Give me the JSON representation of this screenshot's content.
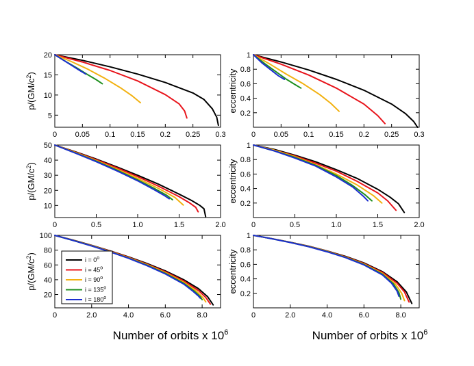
{
  "colors": {
    "i0": "#000000",
    "i45": "#e8141b",
    "i90": "#f2b110",
    "i135": "#1e8f1e",
    "i180": "#1c2fcf"
  },
  "figure": {
    "xlabel_prefix": "Number of orbits x 10",
    "xlabel_exp": "6"
  },
  "legend": {
    "entries": [
      {
        "prefix": "i = ",
        "value": "0",
        "sup": "o",
        "color": "#000000"
      },
      {
        "prefix": "i = ",
        "value": "45",
        "sup": "o",
        "color": "#e8141b"
      },
      {
        "prefix": "i = ",
        "value": "90",
        "sup": "o",
        "color": "#f2b110"
      },
      {
        "prefix": "i = ",
        "value": "135",
        "sup": "o",
        "color": "#1e8f1e"
      },
      {
        "prefix": "i = ",
        "value": "180",
        "sup": "o",
        "color": "#1c2fcf"
      }
    ]
  },
  "chart_data": [
    {
      "id": "top-left",
      "type": "line",
      "ylabel": "p/(GM/c2)",
      "xlim": [
        0,
        0.3
      ],
      "ylim": [
        2,
        20
      ],
      "xticks": [
        "0",
        "0.05",
        "0.1",
        "0.15",
        "0.2",
        "0.25",
        "0.3"
      ],
      "xtick_values": [
        0,
        0.05,
        0.1,
        0.15,
        0.2,
        0.25,
        0.3
      ],
      "yticks": [
        "5",
        "10",
        "15",
        "20"
      ],
      "ytick_values": [
        5,
        10,
        15,
        20
      ],
      "series": [
        {
          "name": "i = 0",
          "color": "#000000",
          "x": [
            0,
            0.05,
            0.1,
            0.15,
            0.2,
            0.25,
            0.27,
            0.285,
            0.293,
            0.296
          ],
          "y": [
            20,
            18.6,
            17.0,
            15.2,
            13.1,
            10.5,
            8.9,
            6.6,
            4.5,
            2.5
          ]
        },
        {
          "name": "i = 45",
          "color": "#e8141b",
          "x": [
            0,
            0.05,
            0.1,
            0.15,
            0.2,
            0.225,
            0.235,
            0.239
          ],
          "y": [
            20,
            18.2,
            16.1,
            13.5,
            10.1,
            7.8,
            6.0,
            4.3
          ]
        },
        {
          "name": "i = 90",
          "color": "#f2b110",
          "x": [
            0,
            0.03,
            0.06,
            0.09,
            0.12,
            0.14,
            0.155
          ],
          "y": [
            20,
            18.3,
            16.4,
            14.2,
            11.7,
            9.8,
            8.1
          ]
        },
        {
          "name": "i = 135",
          "color": "#1e8f1e",
          "x": [
            0,
            0.02,
            0.04,
            0.06,
            0.075,
            0.086
          ],
          "y": [
            20,
            18.3,
            16.7,
            15.0,
            13.8,
            12.8
          ]
        },
        {
          "name": "i = 180",
          "color": "#1c2fcf",
          "x": [
            0,
            0.015,
            0.03,
            0.045,
            0.056
          ],
          "y": [
            20,
            18.7,
            17.4,
            16.1,
            15.2
          ]
        }
      ]
    },
    {
      "id": "top-right",
      "type": "line",
      "ylabel": "eccentricity",
      "xlim": [
        0,
        0.3
      ],
      "ylim": [
        0,
        1
      ],
      "xticks": [
        "0",
        "0.05",
        "0.1",
        "0.15",
        "0.2",
        "0.25",
        "0.3"
      ],
      "xtick_values": [
        0,
        0.05,
        0.1,
        0.15,
        0.2,
        0.25,
        0.3
      ],
      "yticks": [
        "0.2",
        "0.4",
        "0.6",
        "0.8",
        "1"
      ],
      "ytick_values": [
        0.2,
        0.4,
        0.6,
        0.8,
        1
      ],
      "series": [
        {
          "name": "i = 0",
          "color": "#000000",
          "x": [
            0,
            0.05,
            0.1,
            0.15,
            0.2,
            0.25,
            0.275,
            0.29,
            0.297
          ],
          "y": [
            1,
            0.9,
            0.79,
            0.66,
            0.51,
            0.32,
            0.19,
            0.08,
            0.0
          ]
        },
        {
          "name": "i = 45",
          "color": "#e8141b",
          "x": [
            0,
            0.05,
            0.1,
            0.15,
            0.2,
            0.225,
            0.238
          ],
          "y": [
            1,
            0.87,
            0.72,
            0.54,
            0.32,
            0.16,
            0.05
          ]
        },
        {
          "name": "i = 90",
          "color": "#f2b110",
          "x": [
            0,
            0.03,
            0.06,
            0.09,
            0.12,
            0.14,
            0.155
          ],
          "y": [
            1,
            0.87,
            0.73,
            0.6,
            0.45,
            0.33,
            0.22
          ]
        },
        {
          "name": "i = 135",
          "color": "#1e8f1e",
          "x": [
            0,
            0.02,
            0.04,
            0.06,
            0.075,
            0.086
          ],
          "y": [
            1,
            0.88,
            0.77,
            0.66,
            0.59,
            0.54
          ]
        },
        {
          "name": "i = 180",
          "color": "#1c2fcf",
          "x": [
            0,
            0.015,
            0.03,
            0.045,
            0.056
          ],
          "y": [
            1,
            0.89,
            0.8,
            0.71,
            0.66
          ]
        }
      ]
    },
    {
      "id": "mid-left",
      "type": "line",
      "ylabel": "p/(GM/c2)",
      "xlim": [
        0,
        2.0
      ],
      "ylim": [
        2,
        50
      ],
      "xticks": [
        "0",
        "0.5",
        "1.0",
        "1.5",
        "2.0"
      ],
      "xtick_values": [
        0,
        0.5,
        1.0,
        1.5,
        2.0
      ],
      "yticks": [
        "10",
        "20",
        "30",
        "40",
        "50"
      ],
      "ytick_values": [
        10,
        20,
        30,
        40,
        50
      ],
      "series": [
        {
          "name": "i = 0",
          "color": "#000000",
          "x": [
            0,
            0.25,
            0.5,
            0.75,
            1.0,
            1.25,
            1.5,
            1.65,
            1.75,
            1.8,
            1.82
          ],
          "y": [
            50,
            45.5,
            40.7,
            35.5,
            30.0,
            24.1,
            17.5,
            13.3,
            10.0,
            7.8,
            2.7
          ]
        },
        {
          "name": "i = 45",
          "color": "#e8141b",
          "x": [
            0,
            0.25,
            0.5,
            0.75,
            1.0,
            1.25,
            1.5,
            1.62,
            1.7,
            1.73
          ],
          "y": [
            50,
            45.3,
            40.3,
            34.9,
            29.1,
            22.8,
            15.8,
            11.9,
            8.8,
            5.8
          ]
        },
        {
          "name": "i = 90",
          "color": "#f2b110",
          "x": [
            0,
            0.25,
            0.5,
            0.75,
            1.0,
            1.25,
            1.45,
            1.55
          ],
          "y": [
            50,
            45.0,
            39.7,
            34.0,
            27.9,
            21.3,
            15.3,
            10.3
          ]
        },
        {
          "name": "i = 135",
          "color": "#1e8f1e",
          "x": [
            0,
            0.25,
            0.5,
            0.75,
            1.0,
            1.2,
            1.35,
            1.42
          ],
          "y": [
            50,
            44.8,
            39.3,
            33.4,
            26.9,
            21.3,
            16.7,
            13.8
          ]
        },
        {
          "name": "i = 180",
          "color": "#1c2fcf",
          "x": [
            0,
            0.25,
            0.5,
            0.75,
            1.0,
            1.2,
            1.33,
            1.38
          ],
          "y": [
            50,
            44.6,
            39.0,
            32.9,
            26.3,
            20.4,
            16.3,
            14.4
          ]
        }
      ]
    },
    {
      "id": "mid-right",
      "type": "line",
      "ylabel": "eccentricity",
      "xlim": [
        0,
        2.0
      ],
      "ylim": [
        0,
        1
      ],
      "xticks": [
        "0",
        "0.5",
        "1.0",
        "1.5",
        "2.0"
      ],
      "xtick_values": [
        0,
        0.5,
        1.0,
        1.5,
        2.0
      ],
      "yticks": [
        "0.2",
        "0.4",
        "0.6",
        "0.8",
        "1"
      ],
      "ytick_values": [
        0.2,
        0.4,
        0.6,
        0.8,
        1
      ],
      "series": [
        {
          "name": "i = 0",
          "color": "#000000",
          "x": [
            0,
            0.25,
            0.5,
            0.75,
            1.0,
            1.25,
            1.5,
            1.65,
            1.75,
            1.82
          ],
          "y": [
            1,
            0.94,
            0.86,
            0.77,
            0.66,
            0.54,
            0.39,
            0.28,
            0.19,
            0.07
          ]
        },
        {
          "name": "i = 45",
          "color": "#e8141b",
          "x": [
            0,
            0.25,
            0.5,
            0.75,
            1.0,
            1.25,
            1.5,
            1.62,
            1.72
          ],
          "y": [
            1,
            0.93,
            0.85,
            0.75,
            0.64,
            0.5,
            0.34,
            0.23,
            0.1
          ]
        },
        {
          "name": "i = 90",
          "color": "#f2b110",
          "x": [
            0,
            0.25,
            0.5,
            0.75,
            1.0,
            1.25,
            1.45,
            1.55
          ],
          "y": [
            1,
            0.93,
            0.84,
            0.73,
            0.6,
            0.45,
            0.3,
            0.2
          ]
        },
        {
          "name": "i = 135",
          "color": "#1e8f1e",
          "x": [
            0,
            0.25,
            0.5,
            0.75,
            1.0,
            1.2,
            1.35,
            1.43
          ],
          "y": [
            1,
            0.92,
            0.83,
            0.72,
            0.58,
            0.44,
            0.31,
            0.23
          ]
        },
        {
          "name": "i = 180",
          "color": "#1c2fcf",
          "x": [
            0,
            0.25,
            0.5,
            0.75,
            1.0,
            1.2,
            1.33,
            1.38
          ],
          "y": [
            1,
            0.92,
            0.82,
            0.71,
            0.56,
            0.42,
            0.29,
            0.23
          ]
        }
      ]
    },
    {
      "id": "bottom-left",
      "type": "line",
      "ylabel": "p/(GM/c2)",
      "xlim": [
        0,
        9.0
      ],
      "ylim": [
        2,
        100
      ],
      "xticks": [
        "0",
        "2.0",
        "4.0",
        "6.0",
        "8.0"
      ],
      "xtick_values": [
        0,
        2.0,
        4.0,
        6.0,
        8.0
      ],
      "yticks": [
        "20",
        "40",
        "60",
        "80",
        "100"
      ],
      "ytick_values": [
        20,
        40,
        60,
        80,
        100
      ],
      "series": [
        {
          "name": "i = 0",
          "color": "#000000",
          "x": [
            0,
            1,
            2,
            3,
            4,
            5,
            6,
            7,
            7.8,
            8.3,
            8.6
          ],
          "y": [
            100,
            93.5,
            86.5,
            79,
            71,
            62,
            52,
            40,
            28,
            17,
            6
          ]
        },
        {
          "name": "i = 45",
          "color": "#e8141b",
          "x": [
            0,
            1,
            2,
            3,
            4,
            5,
            6,
            7,
            7.8,
            8.2,
            8.45
          ],
          "y": [
            100,
            93.3,
            86.2,
            78.6,
            70.4,
            61.2,
            50.8,
            38.4,
            25.5,
            16,
            7
          ]
        },
        {
          "name": "i = 90",
          "color": "#f2b110",
          "x": [
            0,
            1,
            2,
            3,
            4,
            5,
            6,
            7,
            7.7,
            8.05,
            8.2
          ],
          "y": [
            100,
            93.2,
            86,
            78.2,
            69.8,
            60.4,
            49.7,
            36.7,
            24.5,
            15.5,
            10
          ]
        },
        {
          "name": "i = 135",
          "color": "#1e8f1e",
          "x": [
            0,
            1,
            2,
            3,
            4,
            5,
            6,
            7,
            7.6,
            7.9,
            8.0
          ],
          "y": [
            100,
            93.1,
            85.8,
            77.9,
            69.3,
            59.7,
            48.7,
            35.3,
            24,
            17,
            13
          ]
        },
        {
          "name": "i = 180",
          "color": "#1c2fcf",
          "x": [
            0,
            1,
            2,
            3,
            4,
            5,
            6,
            7,
            7.5,
            7.8,
            7.9
          ],
          "y": [
            100,
            93,
            85.6,
            77.6,
            68.9,
            59.1,
            47.9,
            34.2,
            24.5,
            18,
            15
          ]
        }
      ]
    },
    {
      "id": "bottom-right",
      "type": "line",
      "ylabel": "eccentricity",
      "xlim": [
        0,
        9.0
      ],
      "ylim": [
        0,
        1
      ],
      "xticks": [
        "0",
        "2.0",
        "4.0",
        "6.0",
        "8.0"
      ],
      "xtick_values": [
        0,
        2.0,
        4.0,
        6.0,
        8.0
      ],
      "yticks": [
        "0.2",
        "0.4",
        "0.6",
        "0.8",
        "1"
      ],
      "ytick_values": [
        0.2,
        0.4,
        0.6,
        0.8,
        1
      ],
      "series": [
        {
          "name": "i = 0",
          "color": "#000000",
          "x": [
            0,
            1,
            2,
            3,
            4,
            5,
            6,
            7,
            7.8,
            8.3,
            8.6
          ],
          "y": [
            1,
            0.955,
            0.905,
            0.85,
            0.785,
            0.71,
            0.62,
            0.5,
            0.36,
            0.22,
            0.06
          ]
        },
        {
          "name": "i = 45",
          "color": "#e8141b",
          "x": [
            0,
            1,
            2,
            3,
            4,
            5,
            6,
            7,
            7.8,
            8.2,
            8.45
          ],
          "y": [
            1,
            0.955,
            0.904,
            0.848,
            0.782,
            0.705,
            0.612,
            0.49,
            0.34,
            0.22,
            0.08
          ]
        },
        {
          "name": "i = 90",
          "color": "#f2b110",
          "x": [
            0,
            1,
            2,
            3,
            4,
            5,
            6,
            7,
            7.7,
            8.05,
            8.2
          ],
          "y": [
            1,
            0.954,
            0.903,
            0.846,
            0.779,
            0.7,
            0.605,
            0.475,
            0.33,
            0.2,
            0.1
          ]
        },
        {
          "name": "i = 135",
          "color": "#1e8f1e",
          "x": [
            0,
            1,
            2,
            3,
            4,
            5,
            6,
            7,
            7.6,
            7.9,
            8.0
          ],
          "y": [
            1,
            0.953,
            0.902,
            0.844,
            0.776,
            0.696,
            0.598,
            0.465,
            0.33,
            0.21,
            0.12
          ]
        },
        {
          "name": "i = 180",
          "color": "#1c2fcf",
          "x": [
            0,
            1,
            2,
            3,
            4,
            5,
            6,
            7,
            7.5,
            7.8,
            7.9
          ],
          "y": [
            1,
            0.953,
            0.901,
            0.842,
            0.773,
            0.692,
            0.592,
            0.455,
            0.34,
            0.23,
            0.16
          ]
        }
      ]
    }
  ]
}
